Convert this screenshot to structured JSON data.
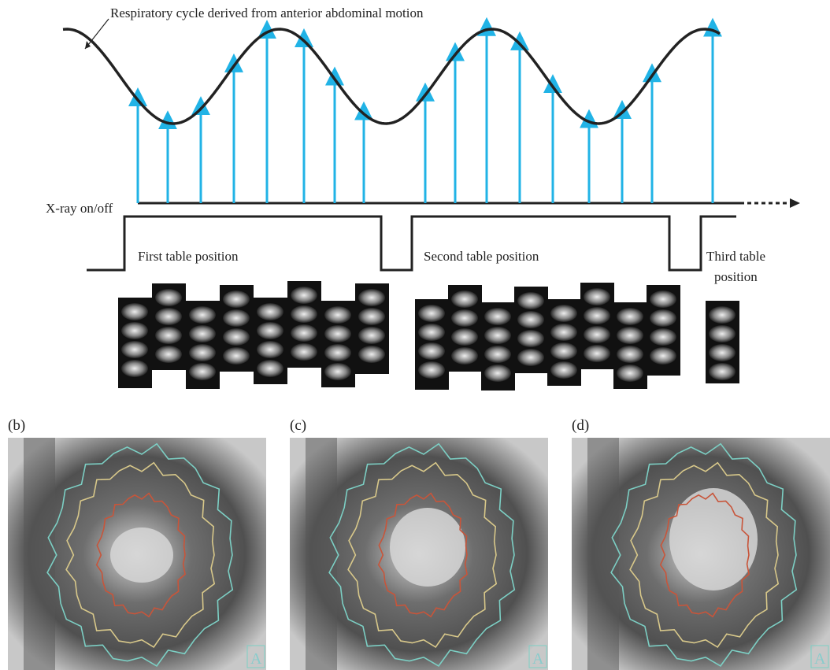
{
  "diagram": {
    "curve_label": "Respiratory cycle derived from anterior abdominal motion",
    "xray_label": "X-ray on/off",
    "positions": [
      "First table position",
      "Second table position",
      "Third table",
      "position"
    ],
    "panels": [
      "(b)",
      "(c)",
      "(d)"
    ],
    "corner_label": "A"
  }
}
